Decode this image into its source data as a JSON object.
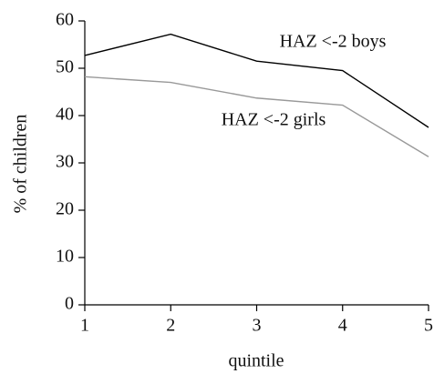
{
  "chart_data": {
    "type": "line",
    "x_label": "quintile",
    "y_label": "% of children",
    "x": [
      1,
      2,
      3,
      4,
      5
    ],
    "series": [
      {
        "name": "HAZ <-2 boys",
        "color": "#000000",
        "values": [
          52.7,
          57.2,
          51.5,
          49.5,
          37.5
        ]
      },
      {
        "name": "HAZ <-2 girls",
        "color": "#999999",
        "values": [
          48.2,
          47.0,
          43.7,
          42.2,
          31.3
        ]
      }
    ],
    "xlim": [
      1,
      5
    ],
    "xticks": [
      1,
      2,
      3,
      4,
      5
    ],
    "ylim": [
      0,
      60
    ],
    "yticks": [
      0,
      10,
      20,
      30,
      40,
      50,
      60
    ],
    "grid": false
  }
}
